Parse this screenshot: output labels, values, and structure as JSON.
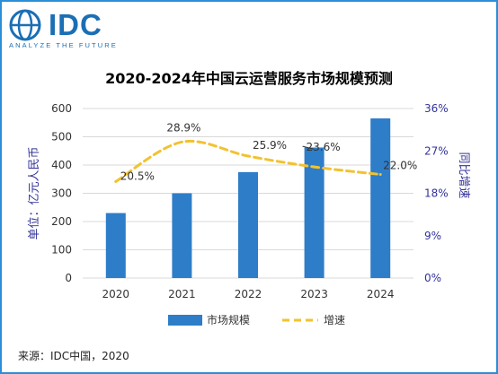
{
  "logo": {
    "word": "IDC",
    "tagline": "ANALYZE THE FUTURE"
  },
  "colors": {
    "bar": "#2e7dc8",
    "line": "#f2c230",
    "frame": "#2a8fd6",
    "axis_text": "#333399"
  },
  "source": "来源：IDC中国，2020",
  "chart_data": {
    "type": "bar",
    "title": "2020-2024年中国云运营服务市场规模预测",
    "categories": [
      "2020",
      "2021",
      "2022",
      "2023",
      "2024"
    ],
    "ylabel": "单位：亿元人民币",
    "y2label": "同比增速",
    "ylim": [
      0,
      600
    ],
    "yticks": [
      "0",
      "100",
      "200",
      "300",
      "400",
      "500",
      "600"
    ],
    "y2lim": [
      0,
      36
    ],
    "y2ticks": [
      "0%",
      "9%",
      "18%",
      "27%",
      "36%"
    ],
    "grid": true,
    "legend_position": "bottom",
    "series": [
      {
        "name": "市场规模",
        "type": "bar",
        "axis": "left",
        "values": [
          230,
          300,
          375,
          462,
          565
        ]
      },
      {
        "name": "增速",
        "type": "line",
        "style": "dashed",
        "axis": "right",
        "values": [
          20.5,
          28.9,
          25.9,
          23.6,
          22.0
        ],
        "labels": [
          "20.5%",
          "28.9%",
          "25.9%",
          "23.6%",
          "22.0%"
        ]
      }
    ]
  }
}
